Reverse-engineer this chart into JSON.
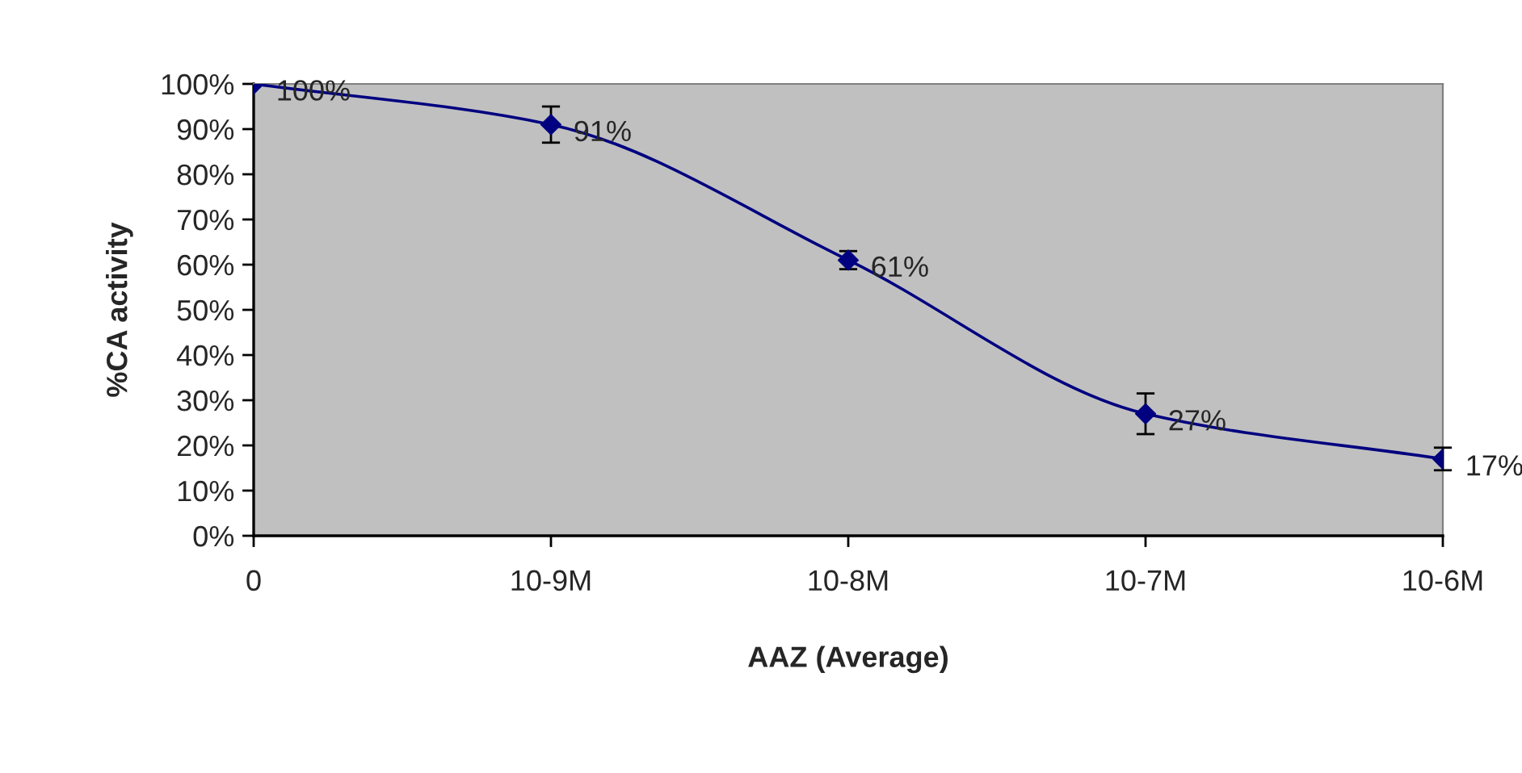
{
  "chart_data": {
    "type": "line",
    "xlabel": "AAZ (Average)",
    "ylabel": "%CA activity",
    "categories": [
      "0",
      "10-9M",
      "10-8M",
      "10-7M",
      "10-6M"
    ],
    "series": [
      {
        "color": "#000080",
        "values": [
          100,
          91,
          61,
          27,
          17
        ],
        "errors": [
          null,
          4,
          2,
          4.5,
          2.5
        ],
        "value_labels": [
          "100%",
          "91%",
          "61%",
          "27%",
          "17%"
        ]
      }
    ],
    "ylim": [
      0,
      100
    ],
    "yticks": [
      {
        "value": 0,
        "label": "0%"
      },
      {
        "value": 10,
        "label": "10%"
      },
      {
        "value": 20,
        "label": "20%"
      },
      {
        "value": 30,
        "label": "30%"
      },
      {
        "value": 40,
        "label": "40%"
      },
      {
        "value": 50,
        "label": "50%"
      },
      {
        "value": 60,
        "label": "60%"
      },
      {
        "value": 70,
        "label": "70%"
      },
      {
        "value": 80,
        "label": "80%"
      },
      {
        "value": 90,
        "label": "90%"
      },
      {
        "value": 100,
        "label": "100%"
      }
    ],
    "marker": "diamond",
    "line_style": "solid",
    "grid": false,
    "legend": false
  }
}
